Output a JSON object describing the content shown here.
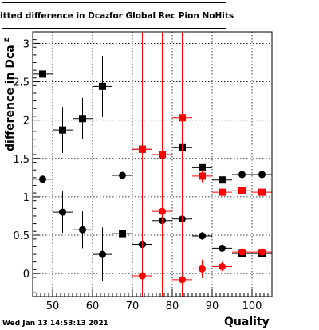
{
  "title": {
    "main": "Fitted difference in Dca",
    "subscript": "z",
    "suffix": " for Global Rec Pion NoHits"
  },
  "ylabel": {
    "main": "difference in Dca",
    "subscript": "z"
  },
  "xlabel": "Quality",
  "date_stamp": "Wed Jan 13 14:53:13 2021",
  "colors": {
    "black": "#000000",
    "red": "#ff0000",
    "grid": "#000000"
  },
  "chart_data": {
    "type": "scatter",
    "xlim": [
      45,
      105
    ],
    "ylim": [
      -0.3,
      3.15
    ],
    "x_ticks": [
      50,
      60,
      70,
      80,
      90,
      100
    ],
    "y_ticks": [
      0,
      0.5,
      1,
      1.5,
      2,
      2.5,
      3
    ],
    "grid": true,
    "series": [
      {
        "marker": "square",
        "color": "#000000",
        "points": [
          {
            "x": 47.5,
            "y": 2.6,
            "xerr": 2.5,
            "yerr": 0.0
          },
          {
            "x": 52.5,
            "y": 1.87,
            "xerr": 2.5,
            "yerr": 0.3
          },
          {
            "x": 57.5,
            "y": 2.02,
            "xerr": 2.5,
            "yerr": 0.27
          },
          {
            "x": 62.5,
            "y": 2.44,
            "xerr": 2.5,
            "yerr": 0.4
          },
          {
            "x": 67.5,
            "y": 0.52,
            "xerr": 2.5,
            "yerr": 0.04
          },
          {
            "x": 72.5,
            "y": 1.62,
            "xerr": 2.5,
            "yerr": 0.04
          },
          {
            "x": 77.5,
            "y": 1.55,
            "xerr": 2.5,
            "yerr": 0.04
          },
          {
            "x": 82.5,
            "y": 1.64,
            "xerr": 2.5,
            "yerr": 0.04
          },
          {
            "x": 87.5,
            "y": 1.38,
            "xerr": 2.5,
            "yerr": 0.04
          },
          {
            "x": 92.5,
            "y": 1.22,
            "xerr": 2.5,
            "yerr": 0.02
          },
          {
            "x": 97.5,
            "y": 0.26,
            "xerr": 2.5,
            "yerr": 0.01
          },
          {
            "x": 102.5,
            "y": 0.26,
            "xerr": 2.5,
            "yerr": 0.01
          }
        ]
      },
      {
        "marker": "circle",
        "color": "#000000",
        "points": [
          {
            "x": 47.5,
            "y": 1.23,
            "xerr": 2.5,
            "yerr": 0.0
          },
          {
            "x": 52.5,
            "y": 0.8,
            "xerr": 2.5,
            "yerr": 0.27
          },
          {
            "x": 57.5,
            "y": 0.57,
            "xerr": 2.5,
            "yerr": 0.24
          },
          {
            "x": 62.5,
            "y": 0.25,
            "xerr": 2.5,
            "yerr": 0.35
          },
          {
            "x": 67.5,
            "y": 1.28,
            "xerr": 2.5,
            "yerr": 0.03
          },
          {
            "x": 72.5,
            "y": 0.38,
            "xerr": 2.5,
            "yerr": 0.04
          },
          {
            "x": 77.5,
            "y": 0.69,
            "xerr": 2.5,
            "yerr": 0.04
          },
          {
            "x": 82.5,
            "y": 0.71,
            "xerr": 2.5,
            "yerr": 0.06
          },
          {
            "x": 87.5,
            "y": 0.49,
            "xerr": 2.5,
            "yerr": 0.05
          },
          {
            "x": 92.5,
            "y": 0.33,
            "xerr": 2.5,
            "yerr": 0.03
          },
          {
            "x": 97.5,
            "y": 1.29,
            "xerr": 2.5,
            "yerr": 0.02
          },
          {
            "x": 102.5,
            "y": 1.29,
            "xerr": 2.5,
            "yerr": 0.02
          }
        ]
      },
      {
        "marker": "square",
        "color": "#ff0000",
        "points": [
          {
            "x": 72.5,
            "y": 1.62,
            "xerr": 2.5,
            "yerr": 50
          },
          {
            "x": 77.5,
            "y": 1.55,
            "xerr": 2.5,
            "yerr": 50
          },
          {
            "x": 82.5,
            "y": 2.03,
            "xerr": 2.5,
            "yerr": 3.0
          },
          {
            "x": 87.5,
            "y": 1.27,
            "xerr": 2.5,
            "yerr": 0.08
          },
          {
            "x": 92.5,
            "y": 1.06,
            "xerr": 2.5,
            "yerr": 0.03
          },
          {
            "x": 97.5,
            "y": 1.08,
            "xerr": 2.5,
            "yerr": 0.02
          },
          {
            "x": 102.5,
            "y": 1.06,
            "xerr": 2.5,
            "yerr": 0.02
          }
        ]
      },
      {
        "marker": "circle",
        "color": "#ff0000",
        "points": [
          {
            "x": 72.5,
            "y": -0.03,
            "xerr": 2.5,
            "yerr": 50
          },
          {
            "x": 77.5,
            "y": 0.81,
            "xerr": 2.5,
            "yerr": 50
          },
          {
            "x": 82.5,
            "y": -0.08,
            "xerr": 2.5,
            "yerr": 1.0
          },
          {
            "x": 87.5,
            "y": 0.06,
            "xerr": 2.5,
            "yerr": 0.12
          },
          {
            "x": 92.5,
            "y": 0.09,
            "xerr": 2.5,
            "yerr": 0.06
          },
          {
            "x": 97.5,
            "y": 0.28,
            "xerr": 2.5,
            "yerr": 0.02
          },
          {
            "x": 102.5,
            "y": 0.28,
            "xerr": 2.5,
            "yerr": 0.02
          }
        ]
      }
    ]
  }
}
